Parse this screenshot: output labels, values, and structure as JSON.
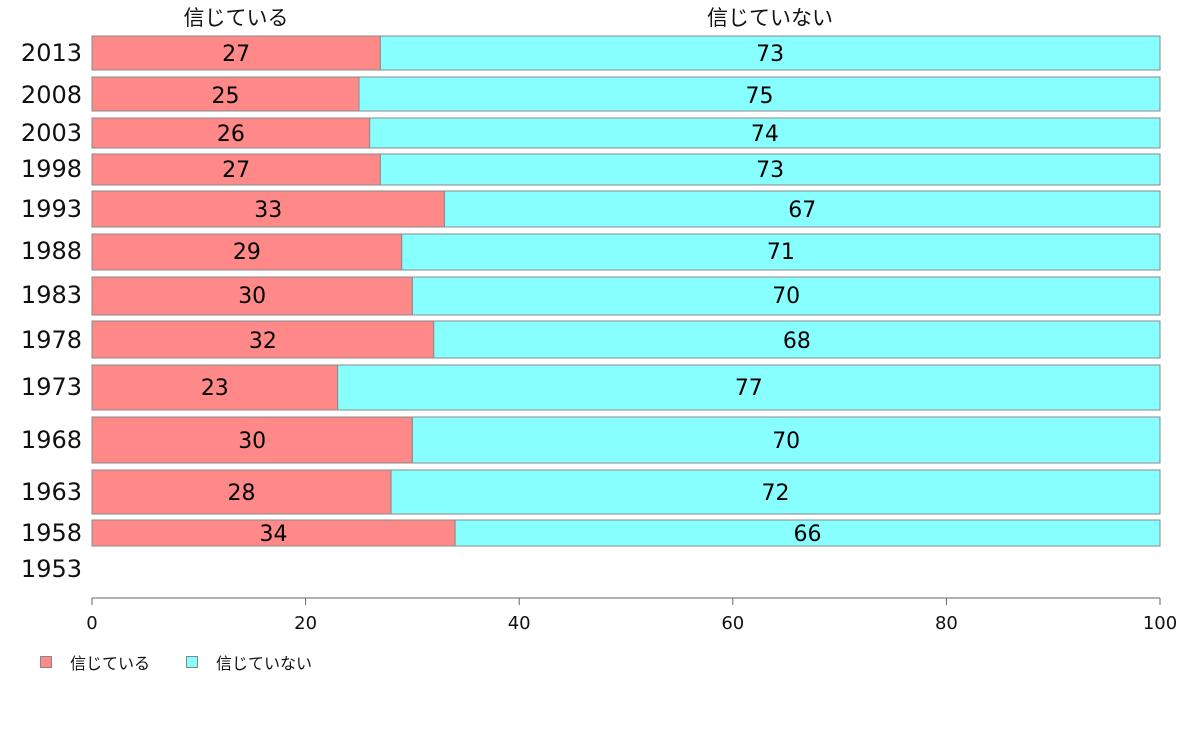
{
  "chart_data": {
    "type": "bar",
    "orientation": "horizontal",
    "stacked": true,
    "categories": [
      "2013",
      "2008",
      "2003",
      "1998",
      "1993",
      "1988",
      "1983",
      "1978",
      "1973",
      "1968",
      "1963",
      "1958",
      "1953"
    ],
    "series": [
      {
        "name": "信じている",
        "color": "#ff8888",
        "values": [
          27,
          25,
          26,
          27,
          33,
          29,
          30,
          32,
          23,
          30,
          28,
          34,
          null
        ]
      },
      {
        "name": "信じていない",
        "color": "#88ffff",
        "values": [
          73,
          75,
          74,
          73,
          67,
          71,
          70,
          68,
          77,
          70,
          72,
          66,
          null
        ]
      }
    ],
    "data_label_values": [
      [
        27,
        73
      ],
      [
        25,
        75
      ],
      [
        26,
        74
      ],
      [
        27,
        73
      ],
      [
        33,
        67
      ],
      [
        29,
        71
      ],
      [
        30,
        70
      ],
      [
        32,
        68
      ],
      [
        23,
        77
      ],
      [
        30,
        70
      ],
      [
        28,
        72
      ],
      [
        34,
        66
      ]
    ],
    "top_labels": [
      "信じている",
      "信じていない"
    ],
    "xlim": [
      0,
      100
    ],
    "x_ticks": [
      "0",
      "20",
      "40",
      "60",
      "80",
      "100"
    ],
    "xlabel": "",
    "ylabel": "",
    "grid": false,
    "legend_position": "bottom-left"
  }
}
